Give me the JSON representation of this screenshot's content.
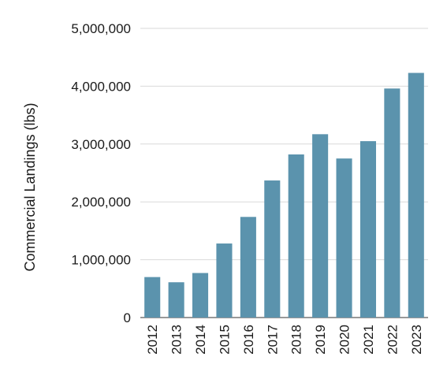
{
  "chart_data": {
    "type": "bar",
    "title": "",
    "xlabel": "",
    "ylabel": "Commercial Landings (lbs)",
    "categories": [
      "2012",
      "2013",
      "2014",
      "2015",
      "2016",
      "2017",
      "2018",
      "2019",
      "2020",
      "2021",
      "2022",
      "2023"
    ],
    "values": [
      700000,
      610000,
      770000,
      1280000,
      1740000,
      2370000,
      2820000,
      3170000,
      2750000,
      3050000,
      3960000,
      4230000
    ],
    "ylim": [
      0,
      5000000
    ],
    "yticks": [
      0,
      1000000,
      2000000,
      3000000,
      4000000,
      5000000
    ],
    "ytick_labels": [
      "0",
      "1,000,000",
      "2,000,000",
      "3,000,000",
      "4,000,000",
      "5,000,000"
    ],
    "grid": true,
    "bar_color": "#5b93ad",
    "legend": "none"
  }
}
